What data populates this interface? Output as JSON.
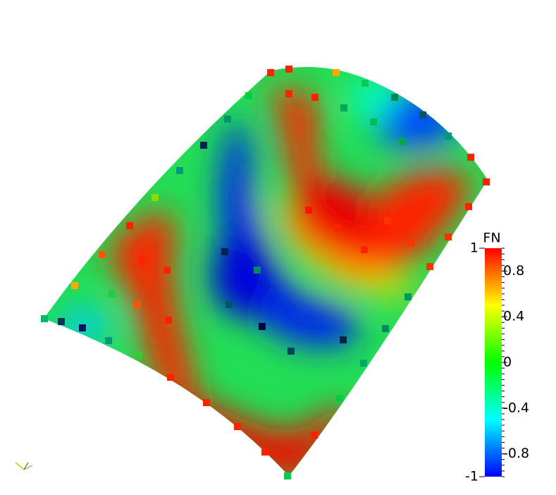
{
  "colorbar": {
    "title": "FN",
    "min": -1,
    "max": 1,
    "ticks": [
      -0.8,
      -0.4,
      0,
      0.4,
      0.8
    ],
    "colormap": [
      "#0000ff",
      "#00ffff",
      "#00ff00",
      "#ffff00",
      "#ff0000"
    ]
  }
}
